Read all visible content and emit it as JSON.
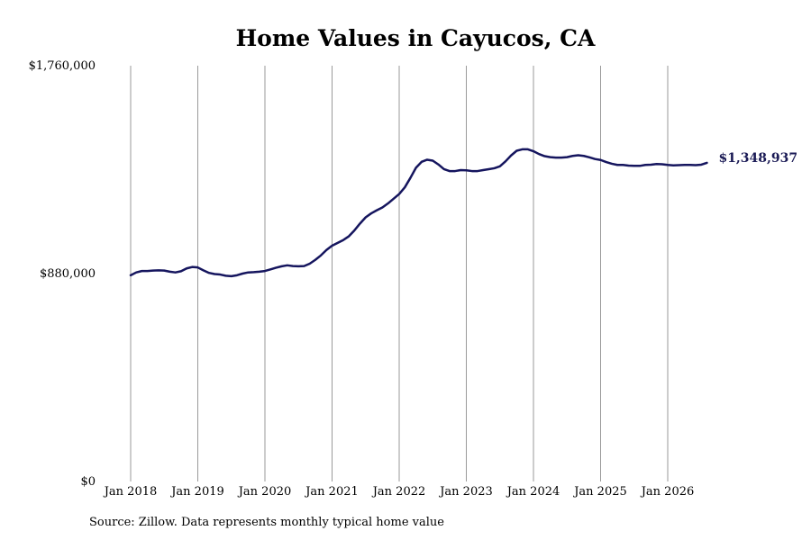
{
  "chart_data": {
    "type": "line",
    "title": "Home Values in Cayucos, CA",
    "xlabel": "",
    "ylabel": "",
    "x_ticks": [
      "Jan 2018",
      "Jan 2019",
      "Jan 2020",
      "Jan 2021",
      "Jan 2022",
      "Jan 2023",
      "Jan 2024",
      "Jan 2025",
      "Jan 2026"
    ],
    "y_ticks": [
      "$0",
      "$880,000",
      "$1,760,000"
    ],
    "y_tick_values": [
      0,
      880000,
      1760000
    ],
    "ylim": [
      0,
      1760000
    ],
    "grid": "vertical",
    "end_label": "$1,348,937",
    "line_color": "#15155e",
    "series": [
      {
        "points": [
          [
            "2018-01",
            873000
          ],
          [
            "2018-02",
            885000
          ],
          [
            "2018-03",
            891000
          ],
          [
            "2018-04",
            891000
          ],
          [
            "2018-05",
            893000
          ],
          [
            "2018-06",
            894000
          ],
          [
            "2018-07",
            893000
          ],
          [
            "2018-08",
            888000
          ],
          [
            "2018-09",
            885000
          ],
          [
            "2018-10",
            890000
          ],
          [
            "2018-11",
            902000
          ],
          [
            "2018-12",
            908000
          ],
          [
            "2019-01",
            906000
          ],
          [
            "2019-02",
            894000
          ],
          [
            "2019-03",
            883000
          ],
          [
            "2019-04",
            878000
          ],
          [
            "2019-05",
            876000
          ],
          [
            "2019-06",
            871000
          ],
          [
            "2019-07",
            869000
          ],
          [
            "2019-08",
            873000
          ],
          [
            "2019-09",
            880000
          ],
          [
            "2019-10",
            885000
          ],
          [
            "2019-11",
            886000
          ],
          [
            "2019-12",
            888000
          ],
          [
            "2020-01",
            891000
          ],
          [
            "2020-02",
            898000
          ],
          [
            "2020-03",
            905000
          ],
          [
            "2020-04",
            911000
          ],
          [
            "2020-05",
            915000
          ],
          [
            "2020-06",
            912000
          ],
          [
            "2020-07",
            911000
          ],
          [
            "2020-08",
            912000
          ],
          [
            "2020-09",
            922000
          ],
          [
            "2020-10",
            938000
          ],
          [
            "2020-11",
            957000
          ],
          [
            "2020-12",
            980000
          ],
          [
            "2021-01",
            998000
          ],
          [
            "2021-02",
            1010000
          ],
          [
            "2021-03",
            1022000
          ],
          [
            "2021-04",
            1038000
          ],
          [
            "2021-05",
            1063000
          ],
          [
            "2021-06",
            1092000
          ],
          [
            "2021-07",
            1118000
          ],
          [
            "2021-08",
            1135000
          ],
          [
            "2021-09",
            1148000
          ],
          [
            "2021-10",
            1160000
          ],
          [
            "2021-11",
            1177000
          ],
          [
            "2021-12",
            1197000
          ],
          [
            "2022-01",
            1217000
          ],
          [
            "2022-02",
            1245000
          ],
          [
            "2022-03",
            1285000
          ],
          [
            "2022-04",
            1328000
          ],
          [
            "2022-05",
            1353000
          ],
          [
            "2022-06",
            1362000
          ],
          [
            "2022-07",
            1358000
          ],
          [
            "2022-08",
            1342000
          ],
          [
            "2022-09",
            1322000
          ],
          [
            "2022-10",
            1314000
          ],
          [
            "2022-11",
            1314000
          ],
          [
            "2022-12",
            1318000
          ],
          [
            "2023-01",
            1317000
          ],
          [
            "2023-02",
            1314000
          ],
          [
            "2023-03",
            1314000
          ],
          [
            "2023-04",
            1318000
          ],
          [
            "2023-05",
            1322000
          ],
          [
            "2023-06",
            1326000
          ],
          [
            "2023-07",
            1334000
          ],
          [
            "2023-08",
            1355000
          ],
          [
            "2023-09",
            1380000
          ],
          [
            "2023-10",
            1400000
          ],
          [
            "2023-11",
            1406000
          ],
          [
            "2023-12",
            1406000
          ],
          [
            "2024-01",
            1398000
          ],
          [
            "2024-02",
            1386000
          ],
          [
            "2024-03",
            1377000
          ],
          [
            "2024-04",
            1373000
          ],
          [
            "2024-05",
            1371000
          ],
          [
            "2024-06",
            1371000
          ],
          [
            "2024-07",
            1373000
          ],
          [
            "2024-08",
            1378000
          ],
          [
            "2024-09",
            1381000
          ],
          [
            "2024-10",
            1378000
          ],
          [
            "2024-11",
            1372000
          ],
          [
            "2024-12",
            1365000
          ],
          [
            "2025-01",
            1361000
          ],
          [
            "2025-02",
            1352000
          ],
          [
            "2025-03",
            1345000
          ],
          [
            "2025-04",
            1340000
          ],
          [
            "2025-05",
            1340000
          ],
          [
            "2025-06",
            1337000
          ],
          [
            "2025-07",
            1336000
          ],
          [
            "2025-08",
            1336000
          ],
          [
            "2025-09",
            1340000
          ],
          [
            "2025-10",
            1341000
          ],
          [
            "2025-11",
            1344000
          ],
          [
            "2025-12",
            1343000
          ],
          [
            "2026-01",
            1340000
          ],
          [
            "2026-02",
            1338000
          ],
          [
            "2026-03",
            1339000
          ],
          [
            "2026-04",
            1340000
          ],
          [
            "2026-05",
            1340000
          ],
          [
            "2026-06",
            1339000
          ],
          [
            "2026-07",
            1341000
          ],
          [
            "2026-08",
            1348937
          ]
        ]
      }
    ]
  },
  "footer": {
    "source": "Source: Zillow. Data represents monthly typical home value"
  }
}
